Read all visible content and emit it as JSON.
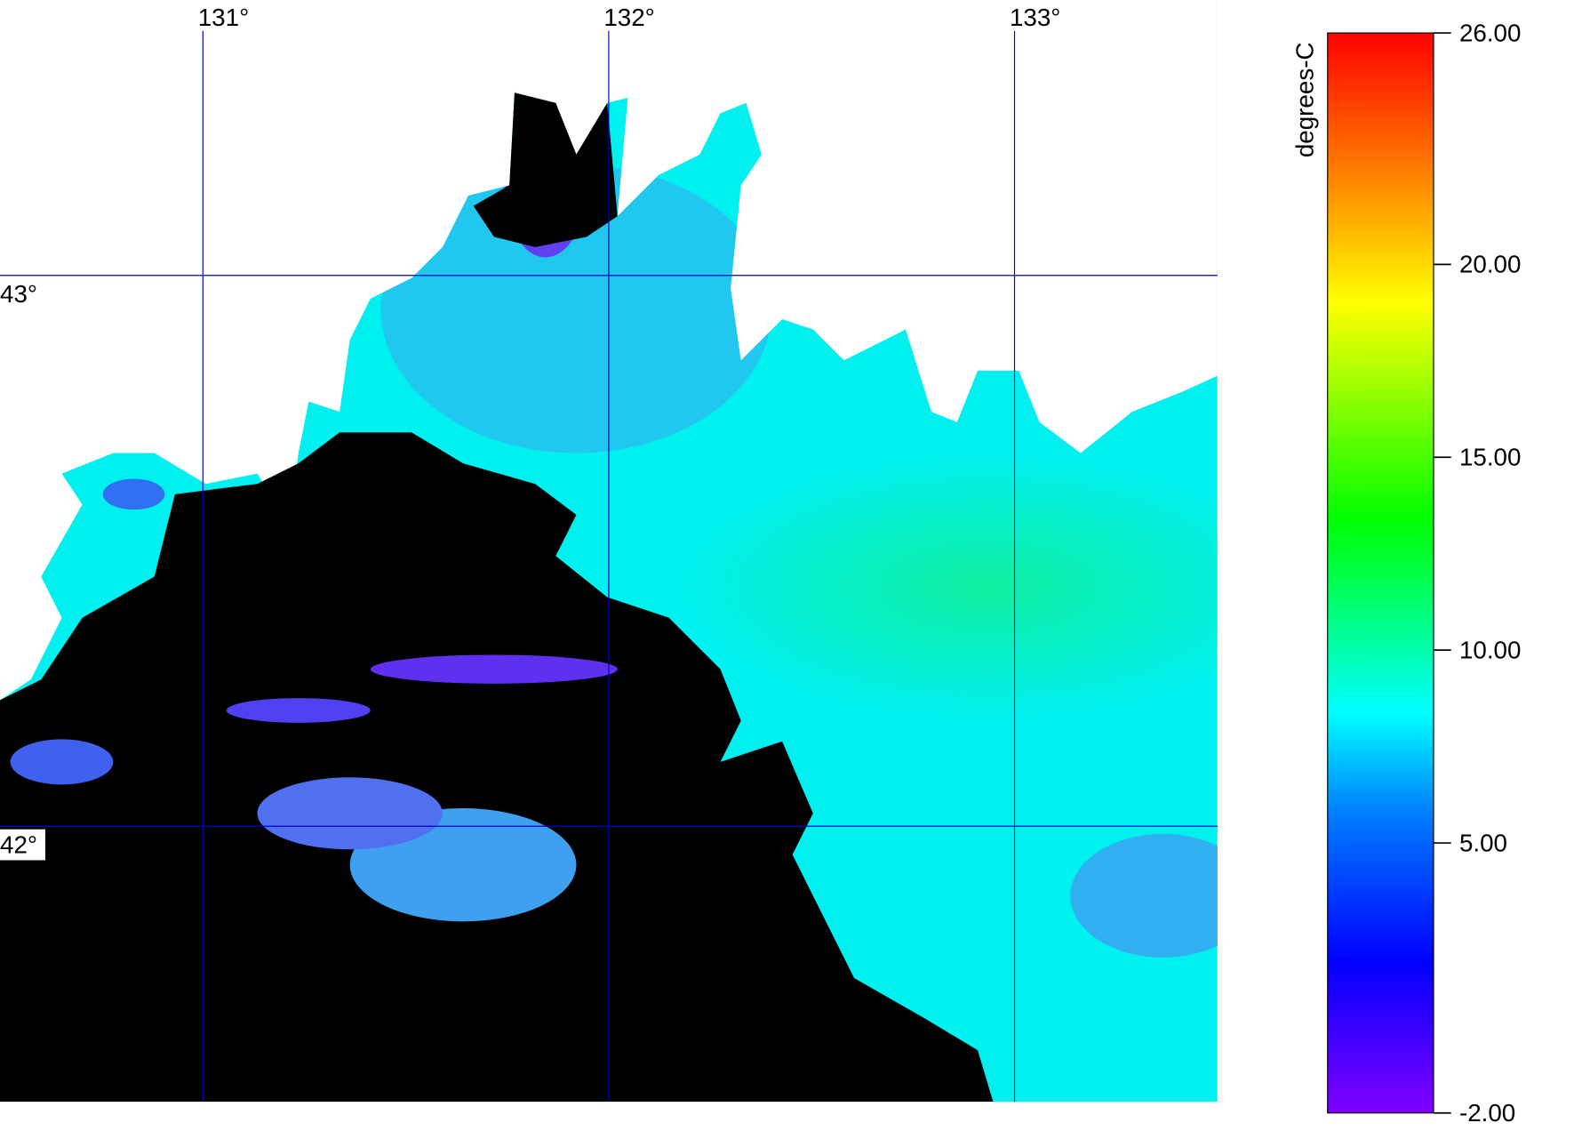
{
  "map": {
    "lonlim": [
      130.5,
      133.5
    ],
    "latlim": [
      41.5,
      43.5
    ],
    "lon_ticks": [
      {
        "value": 131,
        "label": "131°"
      },
      {
        "value": 132,
        "label": "132°"
      },
      {
        "value": 133,
        "label": "133°"
      }
    ],
    "lat_ticks": [
      {
        "value": 43,
        "label": "43°"
      },
      {
        "value": 42,
        "label": "42°"
      }
    ]
  },
  "colorbar": {
    "label": "degrees-C",
    "lim": [
      -2,
      26
    ],
    "ticks": [
      {
        "value": 26,
        "label": "26.00"
      },
      {
        "value": 20,
        "label": "20.00"
      },
      {
        "value": 15,
        "label": "15.00"
      },
      {
        "value": 10,
        "label": "10.00"
      },
      {
        "value": 5,
        "label": "5.00"
      },
      {
        "value": -2,
        "label": "-2.00"
      }
    ]
  }
}
